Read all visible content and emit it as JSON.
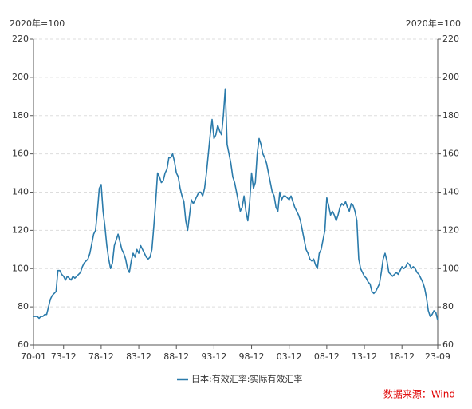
{
  "chart_data": {
    "type": "line",
    "y_label_left": "2020年=100",
    "y_label_right": "2020年=100",
    "source": "数据来源：Wind",
    "categories": [
      "70-01",
      null,
      null,
      null,
      null,
      null,
      null,
      null,
      null,
      null,
      null,
      null,
      null,
      null,
      null,
      null,
      "73-12",
      null,
      null,
      null,
      null,
      null,
      null,
      null,
      null,
      null,
      null,
      null,
      null,
      null,
      null,
      null,
      null,
      null,
      null,
      null,
      "78-12",
      null,
      null,
      null,
      null,
      null,
      null,
      null,
      null,
      null,
      null,
      null,
      null,
      null,
      null,
      null,
      null,
      null,
      null,
      null,
      "83-12",
      null,
      null,
      null,
      null,
      null,
      null,
      null,
      null,
      null,
      null,
      null,
      null,
      null,
      null,
      null,
      null,
      null,
      null,
      null,
      "88-12",
      null,
      null,
      null,
      null,
      null,
      null,
      null,
      null,
      null,
      null,
      null,
      null,
      null,
      null,
      null,
      null,
      null,
      null,
      null,
      "93-12",
      null,
      null,
      null,
      null,
      null,
      null,
      null,
      null,
      null,
      null,
      null,
      null,
      null,
      null,
      null,
      null,
      null,
      null,
      null,
      "98-12",
      null,
      null,
      null,
      null,
      null,
      null,
      null,
      null,
      null,
      null,
      null,
      null,
      null,
      null,
      null,
      null,
      null,
      null,
      null,
      "03-12",
      null,
      null,
      null,
      null,
      null,
      null,
      null,
      null,
      null,
      null,
      null,
      null,
      null,
      null,
      null,
      null,
      null,
      null,
      null,
      "08-12",
      null,
      null,
      null,
      null,
      null,
      null,
      null,
      null,
      null,
      null,
      null,
      null,
      null,
      null,
      null,
      null,
      null,
      null,
      null,
      "13-12",
      null,
      null,
      null,
      null,
      null,
      null,
      null,
      null,
      null,
      null,
      null,
      null,
      null,
      null,
      null,
      null,
      null,
      null,
      null,
      "18-12",
      null,
      null,
      null,
      null,
      null,
      null,
      null,
      null,
      null,
      null,
      null,
      null,
      null,
      null,
      null,
      null,
      null,
      null,
      "23-09"
    ],
    "series": [
      {
        "name": "日本:有效汇率:实际有效汇率",
        "color": "#2b7bab",
        "values": [
          75,
          75,
          75,
          74,
          75,
          75,
          76,
          76,
          80,
          84,
          86,
          87,
          88,
          99,
          99,
          97,
          96,
          94,
          96,
          95,
          94,
          96,
          95,
          96,
          97,
          98,
          101,
          103,
          104,
          105,
          108,
          113,
          118,
          120,
          130,
          142,
          144,
          130,
          122,
          112,
          105,
          100,
          103,
          112,
          115,
          118,
          114,
          110,
          108,
          105,
          100,
          98,
          104,
          108,
          106,
          110,
          108,
          112,
          110,
          108,
          106,
          105,
          106,
          110,
          122,
          135,
          150,
          148,
          145,
          146,
          150,
          152,
          158,
          158,
          160,
          156,
          150,
          148,
          142,
          138,
          135,
          125,
          120,
          128,
          136,
          134,
          136,
          138,
          140,
          140,
          138,
          142,
          150,
          160,
          170,
          178,
          168,
          170,
          175,
          172,
          170,
          180,
          194,
          165,
          160,
          155,
          148,
          145,
          140,
          135,
          130,
          132,
          138,
          130,
          125,
          135,
          150,
          142,
          145,
          160,
          168,
          165,
          160,
          158,
          155,
          150,
          145,
          140,
          138,
          132,
          130,
          140,
          136,
          138,
          138,
          137,
          136,
          138,
          135,
          132,
          130,
          128,
          125,
          120,
          115,
          110,
          108,
          105,
          104,
          105,
          102,
          100,
          108,
          110,
          115,
          120,
          137,
          133,
          128,
          130,
          128,
          125,
          128,
          132,
          134,
          133,
          135,
          132,
          130,
          134,
          133,
          130,
          125,
          105,
          100,
          98,
          96,
          95,
          93,
          92,
          88,
          87,
          88,
          90,
          92,
          98,
          105,
          108,
          104,
          98,
          97,
          96,
          97,
          98,
          97,
          99,
          101,
          100,
          101,
          103,
          102,
          100,
          101,
          100,
          98,
          97,
          95,
          93,
          90,
          85,
          78,
          75,
          76,
          78,
          77,
          73
        ]
      }
    ],
    "ylim": [
      60,
      220
    ],
    "yticks": [
      60,
      80,
      100,
      120,
      140,
      160,
      180,
      200,
      220
    ],
    "grid": true
  }
}
